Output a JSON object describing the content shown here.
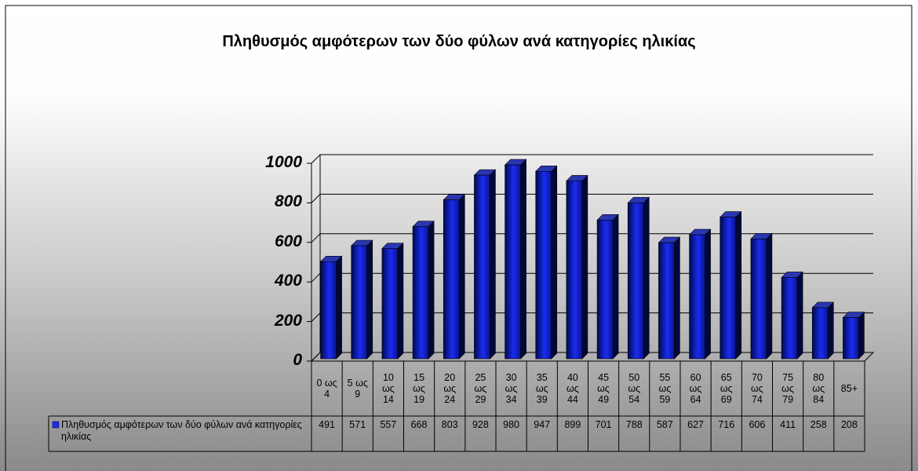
{
  "chart_data": {
    "type": "bar3d",
    "title": "Πληθυσμός αμφότερων των δύο φύλων ανά κατηγορίες ηλικίας",
    "categories": [
      "0 ως 4",
      "5 ως 9",
      "10 ως 14",
      "15 ως 19",
      "20 ως 24",
      "25 ως 29",
      "30 ως 34",
      "35 ως 39",
      "40 ως 44",
      "45 ως 49",
      "50 ως 54",
      "55 ως 59",
      "60 ως 64",
      "65 ως 69",
      "70 ως 74",
      "75 ως 79",
      "80 ως 84",
      "85+"
    ],
    "series": [
      {
        "name": "Πληθυσμός αμφότερων των δύο φύλων ανά κατηγορίες ηλικίας",
        "color": "#1a2cf0",
        "values": [
          491,
          571,
          557,
          668,
          803,
          928,
          980,
          947,
          899,
          701,
          788,
          587,
          627,
          716,
          606,
          411,
          258,
          208
        ]
      }
    ],
    "ylim": [
      0,
      1000
    ],
    "yticks": [
      0,
      200,
      400,
      600,
      800,
      1000
    ],
    "grid": true,
    "data_table": true
  }
}
